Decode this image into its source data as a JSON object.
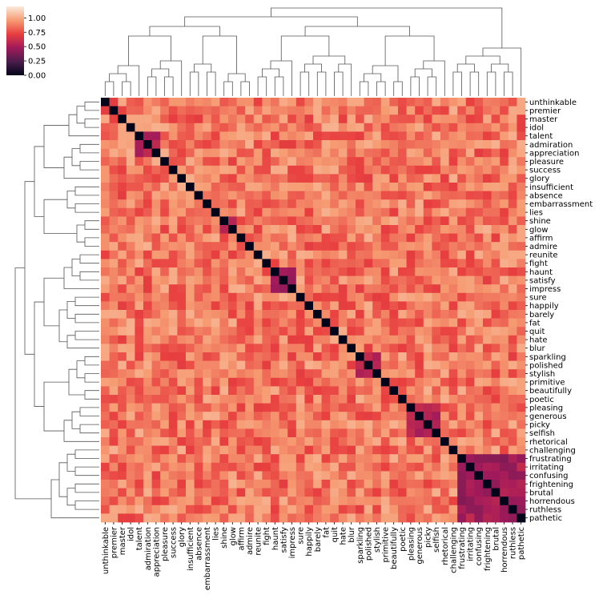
{
  "chart_data": {
    "type": "heatmap",
    "title": "",
    "variant": "clustermap",
    "labels": [
      "unthinkable",
      "premier",
      "master",
      "idol",
      "talent",
      "admiration",
      "appreciation",
      "pleasure",
      "success",
      "glory",
      "insufficient",
      "absence",
      "embarrassment",
      "lies",
      "shine",
      "glow",
      "affirm",
      "admire",
      "reunite",
      "fight",
      "haunt",
      "satisfy",
      "impress",
      "sure",
      "happily",
      "barely",
      "fat",
      "quit",
      "hate",
      "blur",
      "sparkling",
      "polished",
      "stylish",
      "primitive",
      "beautifully",
      "poetic",
      "pleasing",
      "generous",
      "picky",
      "selfish",
      "rhetorical",
      "challenging",
      "frustrating",
      "irritating",
      "confusing",
      "frightening",
      "brutal",
      "horrendous",
      "ruthless",
      "pathetic"
    ],
    "row_labels_shown": [
      "unthinkable",
      "premier",
      "master",
      "idol",
      "talent",
      "admiration",
      "appreciation",
      "pleasure",
      "success",
      "glory",
      "insufficient",
      "absence",
      "embarrassment",
      "lies",
      "shine",
      "glow",
      "affirm",
      "admire",
      "reunite",
      "fight",
      "haunt",
      "satisfy",
      "impress",
      "sure",
      "happily",
      "barely",
      "fat",
      "quit",
      "hate",
      "blur",
      "sparkling",
      "polished",
      "stylish",
      "primitive",
      "beautifully",
      "poetic",
      "pleasing",
      "generous",
      "picky",
      "selfish",
      "rhetorical",
      "challenging",
      "frustrating",
      "irritating",
      "confusing",
      "frightening",
      "brutal",
      "horrendous",
      "ruthless",
      "pathetic"
    ],
    "col_labels_shown": [
      "unthinkable",
      "premier",
      "master",
      "idol",
      "talent",
      "admiration",
      "appreciation",
      "pleasure",
      "success",
      "glory",
      "insufficient",
      "absence",
      "embarrassment",
      "lies",
      "shine",
      "glow",
      "affirm",
      "admire",
      "reunite",
      "fight",
      "haunt",
      "satisfy",
      "impress",
      "sure",
      "happily",
      "barely",
      "fat",
      "quit",
      "hate",
      "blur",
      "sparkling",
      "polished",
      "stylish",
      "primitive",
      "beautifully",
      "poetic",
      "pleasing",
      "generous",
      "picky",
      "selfish",
      "rhetorical",
      "challenging",
      "frustrating",
      "irritating",
      "confusing",
      "frightening",
      "brutal",
      "horrendous",
      "ruthless",
      "pathetic"
    ],
    "diagonal_value": 0.0,
    "off_diagonal_typical": 0.85,
    "low_value_clusters": [
      {
        "members": [
          "frustrating",
          "irritating",
          "confusing",
          "frightening",
          "brutal",
          "horrendous",
          "ruthless",
          "pathetic"
        ],
        "value": 0.5
      },
      {
        "members": [
          "haunt",
          "satisfy",
          "impress"
        ],
        "value": 0.55
      },
      {
        "members": [
          "shine",
          "glow"
        ],
        "value": 0.55
      },
      {
        "members": [
          "talent",
          "admiration",
          "appreciation"
        ],
        "value": 0.6
      },
      {
        "members": [
          "pleasing",
          "generous",
          "picky",
          "selfish"
        ],
        "value": 0.6
      },
      {
        "members": [
          "sparkling",
          "polished",
          "stylish"
        ],
        "value": 0.62
      }
    ],
    "colorbar": {
      "ticks": [
        "0.00",
        "0.25",
        "0.50",
        "0.75",
        "1.00"
      ],
      "tick_values": [
        0.0,
        0.25,
        0.5,
        0.75,
        1.0
      ],
      "vmin": 0.0,
      "vmax": 1.2,
      "colors": [
        "#03051a",
        "#4c1d4b",
        "#a11a5b",
        "#e83f3f",
        "#f69c73",
        "#faebdd"
      ]
    }
  }
}
